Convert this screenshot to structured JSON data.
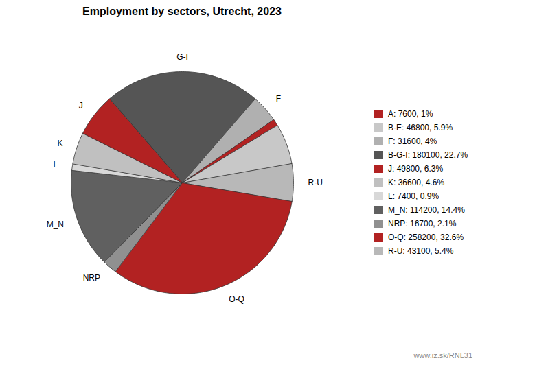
{
  "chart_data": {
    "type": "pie",
    "title": "Employment by sectors, Utrecht, 2023",
    "categories": [
      "G-I",
      "F",
      null,
      null,
      "R-U",
      "O-Q",
      "NRP",
      "M_N",
      "L",
      "K",
      "J"
    ],
    "values": [
      180100,
      31600,
      7600,
      46800,
      43100,
      258200,
      16700,
      114200,
      7400,
      36600,
      49800
    ],
    "colors": [
      "#555555",
      "#b0b0b0",
      "#b22222",
      "#c8c8c8",
      "#b8b8b8",
      "#b22222",
      "#909090",
      "#606060",
      "#d8d8d8",
      "#c0c0c0",
      "#b22222"
    ],
    "legend": "right",
    "legend_entries": [
      {
        "label": "A: 7600, 1%",
        "color": "#b22222"
      },
      {
        "label": "B-E: 46800, 5.9%",
        "color": "#c8c8c8"
      },
      {
        "label": "F: 31600, 4%",
        "color": "#b0b0b0"
      },
      {
        "label": "B-G-I: 180100, 22.7%",
        "color": "#555555"
      },
      {
        "label": "J: 49800, 6.3%",
        "color": "#b22222"
      },
      {
        "label": "K: 36600, 4.6%",
        "color": "#c0c0c0"
      },
      {
        "label": "L: 7400, 0.9%",
        "color": "#d8d8d8"
      },
      {
        "label": "M_N: 114200, 14.4%",
        "color": "#606060"
      },
      {
        "label": "NRP: 16700, 2.1%",
        "color": "#909090"
      },
      {
        "label": "O-Q: 258200, 32.6%",
        "color": "#b22222"
      },
      {
        "label": "R-U: 43100, 5.4%",
        "color": "#b8b8b8"
      }
    ],
    "annotations": [
      "www.iz.sk/RNL31"
    ]
  }
}
